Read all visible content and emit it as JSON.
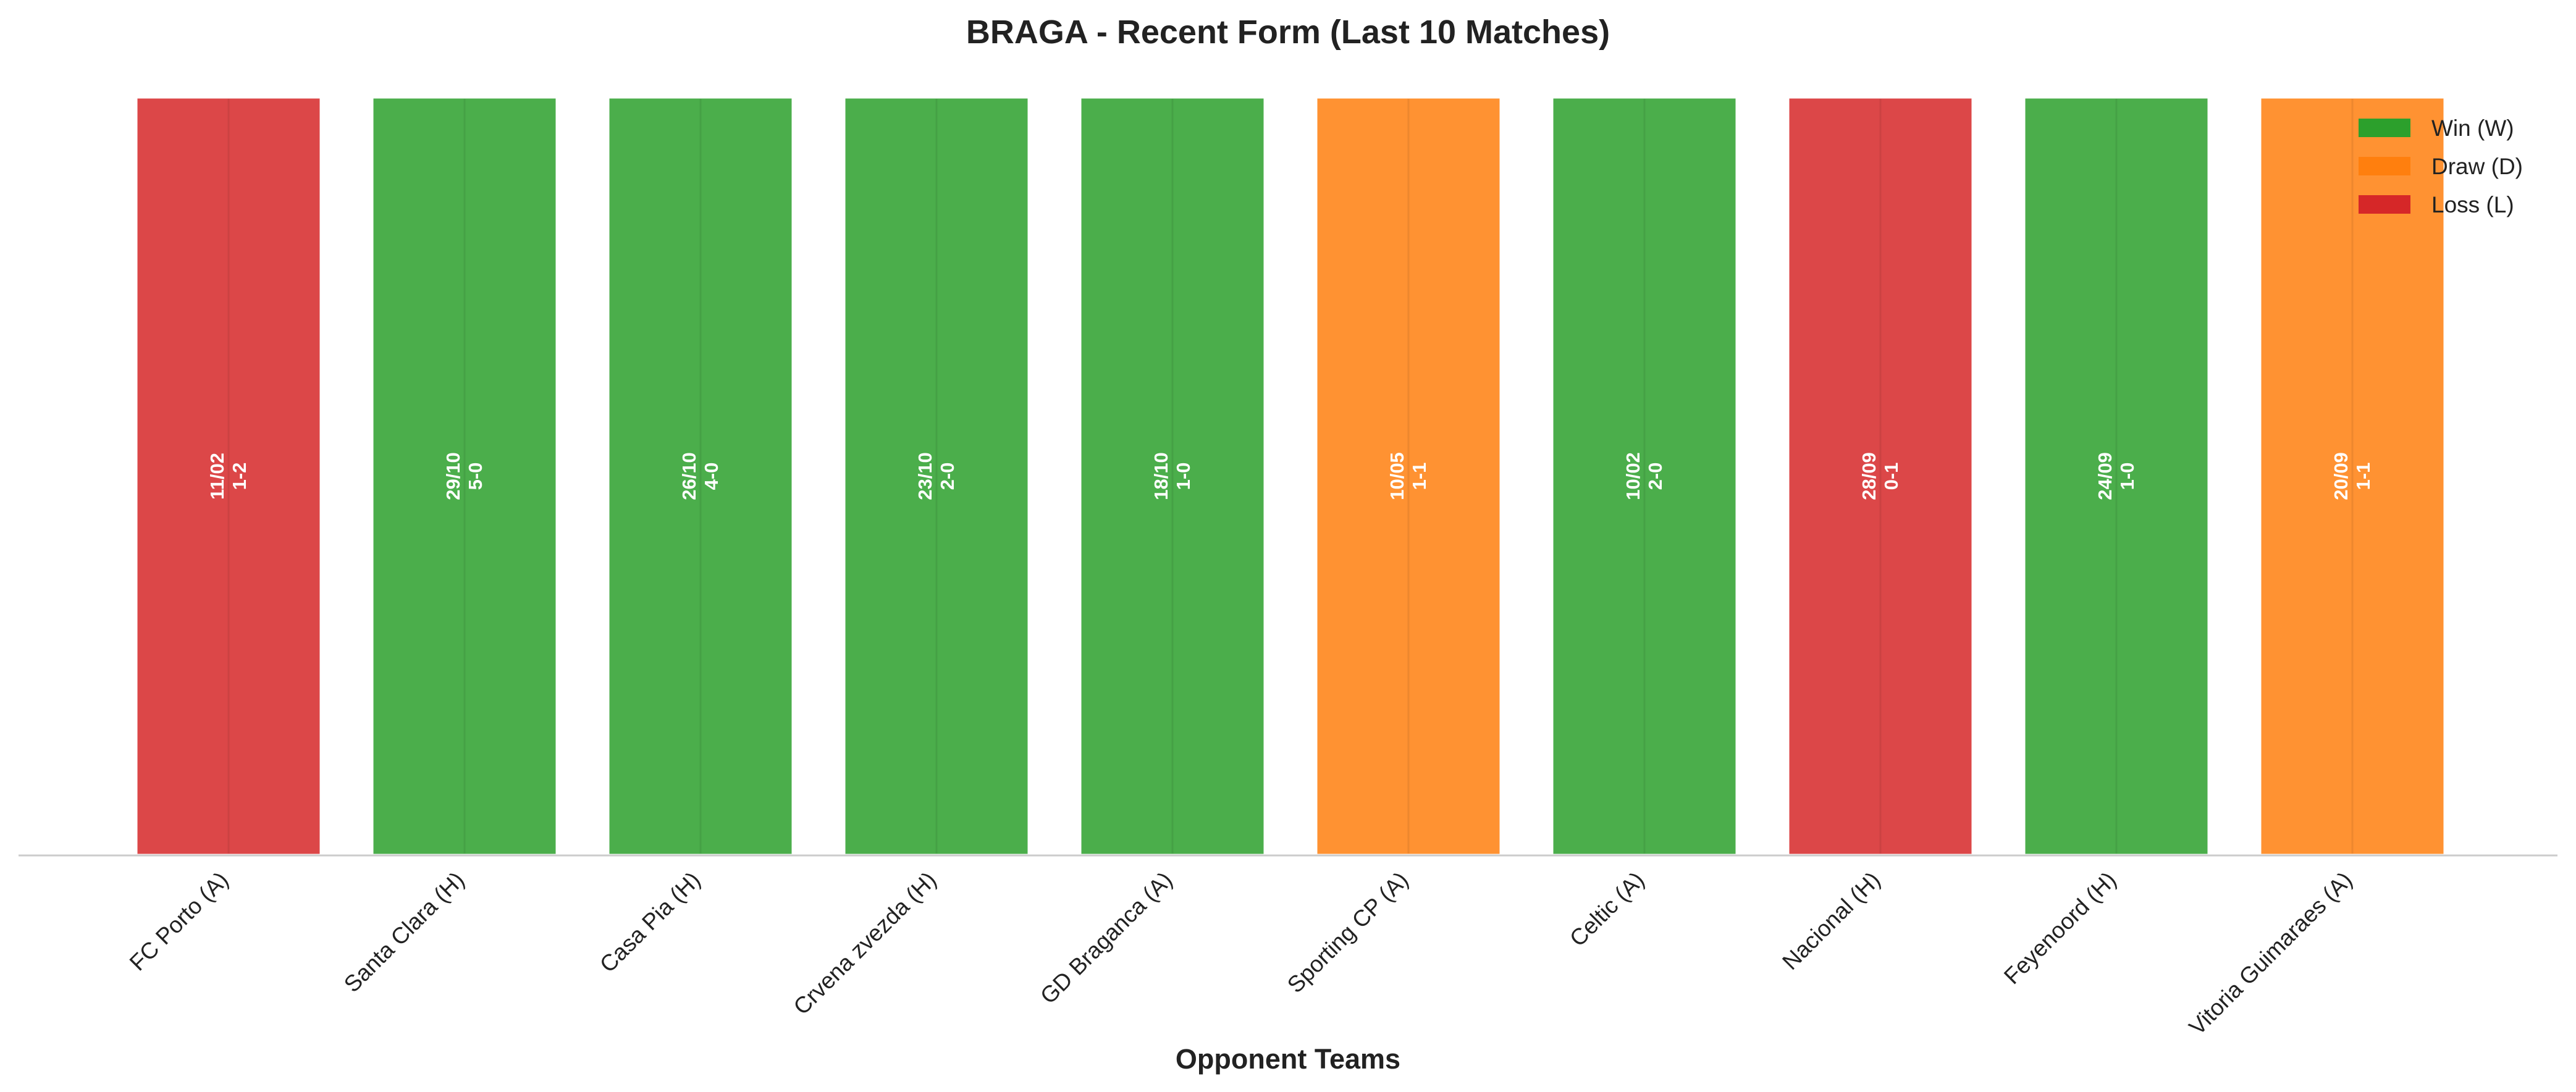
{
  "chart_data": {
    "type": "bar",
    "title": "BRAGA - Recent Form (Last 10 Matches)",
    "xlabel": "Opponent Teams",
    "ylabel": "",
    "categories": [
      "FC Porto (A)",
      "Santa Clara (H)",
      "Casa Pia (H)",
      "Crvena zvezda (H)",
      "GD Braganca (A)",
      "Sporting CP (A)",
      "Celtic (A)",
      "Nacional (H)",
      "Feyenoord (H)",
      "Vitoria Guimaraes (A)"
    ],
    "values": [
      1,
      1,
      1,
      1,
      1,
      1,
      1,
      1,
      1,
      1
    ],
    "results": [
      "L",
      "W",
      "W",
      "W",
      "W",
      "D",
      "W",
      "L",
      "W",
      "D"
    ],
    "dates": [
      "11/02",
      "29/10",
      "26/10",
      "23/10",
      "18/10",
      "10/05",
      "10/02",
      "28/09",
      "24/09",
      "20/09"
    ],
    "scores": [
      "1-2",
      "5-0",
      "4-0",
      "2-0",
      "1-0",
      "1-1",
      "2-0",
      "0-1",
      "1-0",
      "1-1"
    ],
    "legend": [
      {
        "key": "W",
        "label": "Win (W)",
        "color": "#2ca02c"
      },
      {
        "key": "D",
        "label": "Draw (D)",
        "color": "#ff7f0e"
      },
      {
        "key": "L",
        "label": "Loss (L)",
        "color": "#d62728"
      }
    ],
    "legend_position": "top-right",
    "grid": false,
    "ylim": [
      0,
      1
    ]
  }
}
